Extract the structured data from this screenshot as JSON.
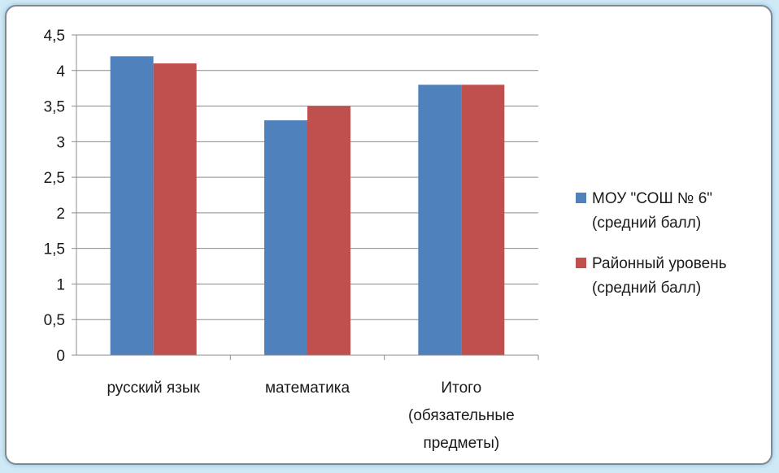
{
  "chart_data": {
    "type": "bar",
    "categories": [
      [
        "русский язык"
      ],
      [
        "математика"
      ],
      [
        "Итого",
        "(обязательные",
        "предметы)"
      ]
    ],
    "series": [
      {
        "name": [
          "МОУ \"СОШ № 6\"",
          "(средний балл)"
        ],
        "values": [
          4.2,
          3.3,
          3.8
        ],
        "color": "#4f81bd"
      },
      {
        "name": [
          "Районный уровень",
          "(средний балл)"
        ],
        "values": [
          4.1,
          3.5,
          3.8
        ],
        "color": "#c0504d"
      }
    ],
    "yticks": [
      "0",
      "0,5",
      "1",
      "1,5",
      "2",
      "2,5",
      "3",
      "3,5",
      "4",
      "4,5"
    ],
    "ylim": [
      0,
      4.5
    ],
    "grid": true,
    "legend_position": "right"
  }
}
